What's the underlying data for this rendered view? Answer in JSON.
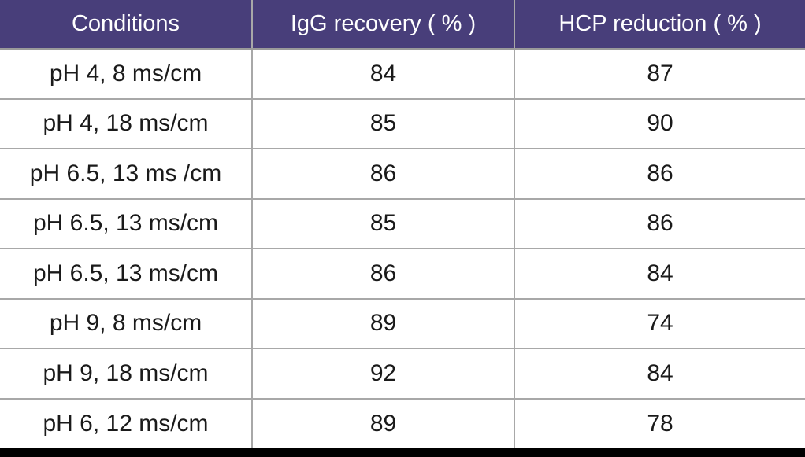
{
  "chart_data": {
    "type": "table",
    "title": "",
    "columns": [
      "Conditions",
      "IgG recovery ( % )",
      "HCP reduction ( % )"
    ],
    "rows": [
      [
        "pH 4, 8 ms/cm",
        84,
        87
      ],
      [
        "pH 4, 18 ms/cm",
        85,
        90
      ],
      [
        "pH 6.5, 13 ms /cm",
        86,
        86
      ],
      [
        "pH 6.5, 13 ms/cm",
        85,
        86
      ],
      [
        "pH 6.5, 13 ms/cm",
        86,
        84
      ],
      [
        "pH 9, 8 ms/cm",
        89,
        74
      ],
      [
        "pH 9, 18 ms/cm",
        92,
        84
      ],
      [
        "pH 6, 12 ms/cm",
        89,
        78
      ]
    ],
    "layout": {
      "header_position": "top",
      "grid": true,
      "units": "percent"
    }
  },
  "colors": {
    "header_bg": "#483E7A",
    "header_text": "#FFFFFF",
    "body_text": "#1A1A1A",
    "border": "#A8A8A8",
    "bottom_bar": "#000000",
    "cell_bg": "#FFFFFF"
  }
}
